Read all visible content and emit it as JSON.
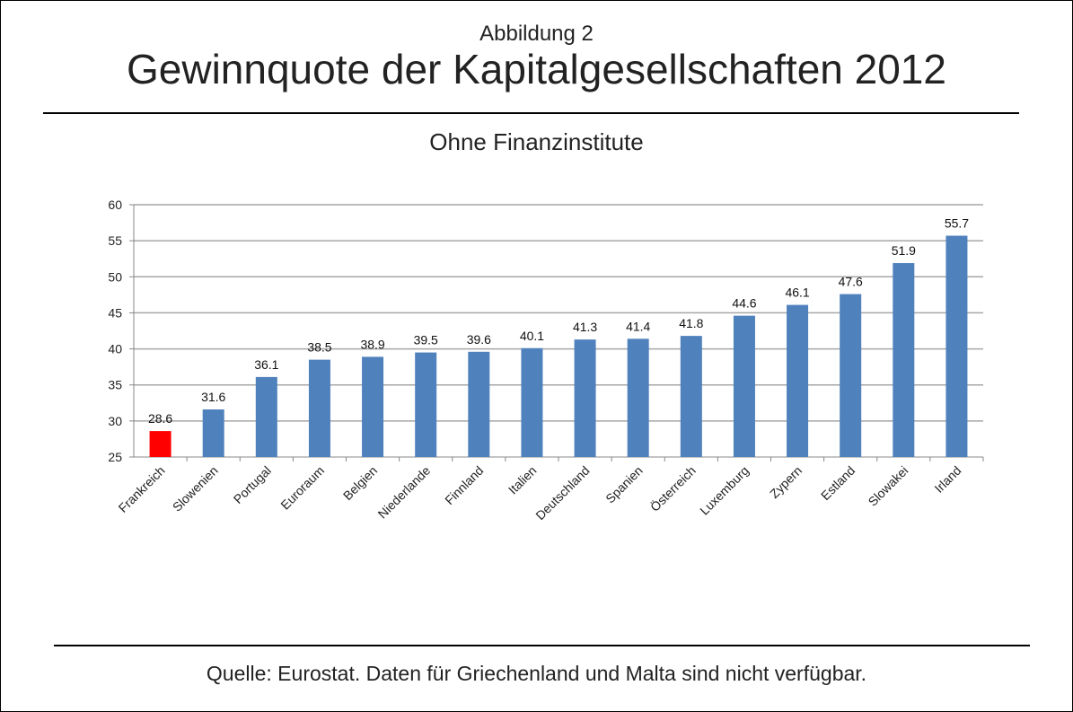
{
  "header": {
    "overline": "Abbildung 2",
    "title": "Gewinnquote der Kapitalgesellschaften 2012",
    "subtitle": "Ohne Finanzinstitute"
  },
  "footer": {
    "source": "Quelle: Eurostat. Daten für Griechenland und Malta sind nicht verfügbar."
  },
  "colors": {
    "bar": "#4f81bd",
    "highlight": "#ff0000",
    "grid": "#a6a6a6"
  },
  "chart_data": {
    "type": "bar",
    "categories": [
      "Frankreich",
      "Slowenien",
      "Portugal",
      "Euroraum",
      "Belgien",
      "Niederlande",
      "Finnland",
      "Italien",
      "Deutschland",
      "Spanien",
      "Österreich",
      "Luxemburg",
      "Zypern",
      "Estland",
      "Slowakei",
      "Irland"
    ],
    "values": [
      28.6,
      31.6,
      36.1,
      38.5,
      38.9,
      39.5,
      39.6,
      40.1,
      41.3,
      41.4,
      41.8,
      44.6,
      46.1,
      47.6,
      51.9,
      55.7
    ],
    "value_labels": [
      "28.6",
      "31.6",
      "36.1",
      "38.5",
      "38.9",
      "39.5",
      "39.6",
      "40.1",
      "41.3",
      "41.4",
      "41.8",
      "44.6",
      "46.1",
      "47.6",
      "51.9",
      "55.7"
    ],
    "highlight_category": "Frankreich",
    "ylim": [
      25,
      60
    ],
    "yticks": [
      25,
      30,
      35,
      40,
      45,
      50,
      55,
      60
    ],
    "grid": true,
    "legend": "none",
    "title": "Gewinnquote der Kapitalgesellschaften 2012",
    "xlabel": "",
    "ylabel": ""
  }
}
